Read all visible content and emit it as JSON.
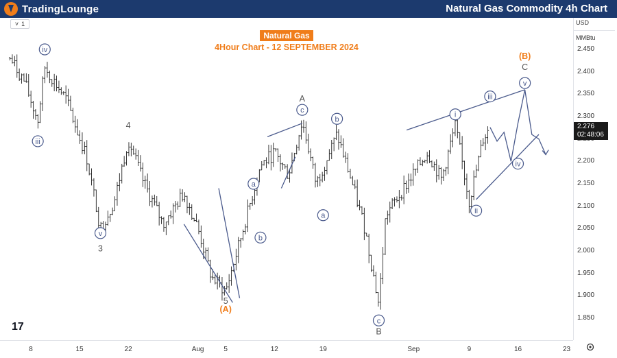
{
  "header": {
    "logo_part1": "TradingLounge",
    "logo_part2": "",
    "title": "Natural Gas Commodity 4h Chart"
  },
  "symbol_box": {
    "menu_glyph": "˅",
    "value": "1"
  },
  "chart_title": {
    "name": "Natural Gas",
    "subtitle": "4Hour Chart - 12 SEPTEMBER 2024"
  },
  "units": {
    "currency": "USD",
    "unit": "MMBtu"
  },
  "price_tag": {
    "price": "2.276",
    "countdown": "02:48:06"
  },
  "tv_logo": "17",
  "colors": {
    "header_bg": "#1c3a6e",
    "brand_orange": "#f07d1a",
    "wave_blue": "#4a5a8c",
    "label_gray": "#555555"
  },
  "chart_data": {
    "type": "candlestick",
    "title": "Natural Gas",
    "subtitle": "4Hour Chart - 12 SEPTEMBER 2024",
    "y_unit": "USD / MMBtu",
    "ylim": [
      1.82,
      2.48
    ],
    "y_ticks": [
      "2.450",
      "2.400",
      "2.350",
      "2.300",
      "2.250",
      "2.200",
      "2.150",
      "2.100",
      "2.050",
      "2.000",
      "1.950",
      "1.900",
      "1.850"
    ],
    "x_ticks": [
      "8",
      "15",
      "22",
      "Aug",
      "5",
      "12",
      "19",
      "Sep",
      "9",
      "16",
      "23"
    ],
    "last_price": 2.276,
    "price_path": [
      {
        "x": "Jul 5",
        "y": 2.43
      },
      {
        "x": "Jul 7",
        "y": 2.38
      },
      {
        "x": "Jul 9",
        "y": 2.29
      },
      {
        "x": "Jul 10",
        "y": 2.41
      },
      {
        "x": "Jul 13",
        "y": 2.34
      },
      {
        "x": "Jul 16",
        "y": 2.21
      },
      {
        "x": "Jul 18",
        "y": 2.05
      },
      {
        "x": "Jul 20",
        "y": 2.11
      },
      {
        "x": "Jul 22",
        "y": 2.25
      },
      {
        "x": "Jul 24",
        "y": 2.16
      },
      {
        "x": "Jul 27",
        "y": 2.06
      },
      {
        "x": "Jul 30",
        "y": 2.13
      },
      {
        "x": "Aug 1",
        "y": 2.05
      },
      {
        "x": "Aug 3",
        "y": 1.94
      },
      {
        "x": "Aug 5",
        "y": 1.91
      },
      {
        "x": "Aug 7",
        "y": 2.02
      },
      {
        "x": "Aug 10",
        "y": 2.19
      },
      {
        "x": "Aug 12",
        "y": 2.22
      },
      {
        "x": "Aug 14",
        "y": 2.17
      },
      {
        "x": "Aug 16",
        "y": 2.29
      },
      {
        "x": "Aug 18",
        "y": 2.15
      },
      {
        "x": "Aug 21",
        "y": 2.26
      },
      {
        "x": "Aug 23",
        "y": 2.16
      },
      {
        "x": "Aug 25",
        "y": 2.05
      },
      {
        "x": "Aug 27",
        "y": 1.88
      },
      {
        "x": "Aug 28",
        "y": 2.08
      },
      {
        "x": "Aug 31",
        "y": 2.15
      },
      {
        "x": "Sep 3",
        "y": 2.22
      },
      {
        "x": "Sep 5",
        "y": 2.16
      },
      {
        "x": "Sep 7",
        "y": 2.28
      },
      {
        "x": "Sep 9",
        "y": 2.11
      },
      {
        "x": "Sep 11",
        "y": 2.25
      },
      {
        "x": "Sep 12",
        "y": 2.276
      }
    ],
    "wave_labels": [
      {
        "text": "iv",
        "x": "Jul 10",
        "y": 2.45,
        "circled": true
      },
      {
        "text": "iii",
        "x": "Jul 9",
        "y": 2.245,
        "circled": true
      },
      {
        "text": "v",
        "x": "Jul 18",
        "y": 2.04,
        "circled": true
      },
      {
        "text": "3",
        "x": "Jul 18",
        "y": 2.005,
        "circled": false
      },
      {
        "text": "4",
        "x": "Jul 22",
        "y": 2.28,
        "circled": false
      },
      {
        "text": "5",
        "x": "Aug 5",
        "y": 1.888,
        "circled": false
      },
      {
        "text": "(A)",
        "x": "Aug 5",
        "y": 1.87,
        "circled": false,
        "orange": true
      },
      {
        "text": "a",
        "x": "Aug 9",
        "y": 2.15,
        "circled": true
      },
      {
        "text": "b",
        "x": "Aug 10",
        "y": 2.03,
        "circled": true
      },
      {
        "text": "c",
        "x": "Aug 16",
        "y": 2.315,
        "circled": true
      },
      {
        "text": "A",
        "x": "Aug 16",
        "y": 2.34,
        "circled": false
      },
      {
        "text": "a",
        "x": "Aug 19",
        "y": 2.08,
        "circled": true
      },
      {
        "text": "b",
        "x": "Aug 21",
        "y": 2.295,
        "circled": true
      },
      {
        "text": "c",
        "x": "Aug 27",
        "y": 1.845,
        "circled": true
      },
      {
        "text": "B",
        "x": "Aug 27",
        "y": 1.82,
        "circled": false
      },
      {
        "text": "i",
        "x": "Sep 7",
        "y": 2.305,
        "circled": true
      },
      {
        "text": "ii",
        "x": "Sep 10",
        "y": 2.09,
        "circled": true
      },
      {
        "text": "iii",
        "x": "Sep 12",
        "y": 2.345,
        "circled": true
      },
      {
        "text": "iv",
        "x": "Sep 16",
        "y": 2.195,
        "circled": true
      },
      {
        "text": "v",
        "x": "Sep 17",
        "y": 2.375,
        "circled": true
      },
      {
        "text": "C",
        "x": "Sep 17",
        "y": 2.41,
        "circled": false
      },
      {
        "text": "(B)",
        "x": "Sep 17",
        "y": 2.435,
        "circled": false,
        "orange": true
      }
    ]
  }
}
